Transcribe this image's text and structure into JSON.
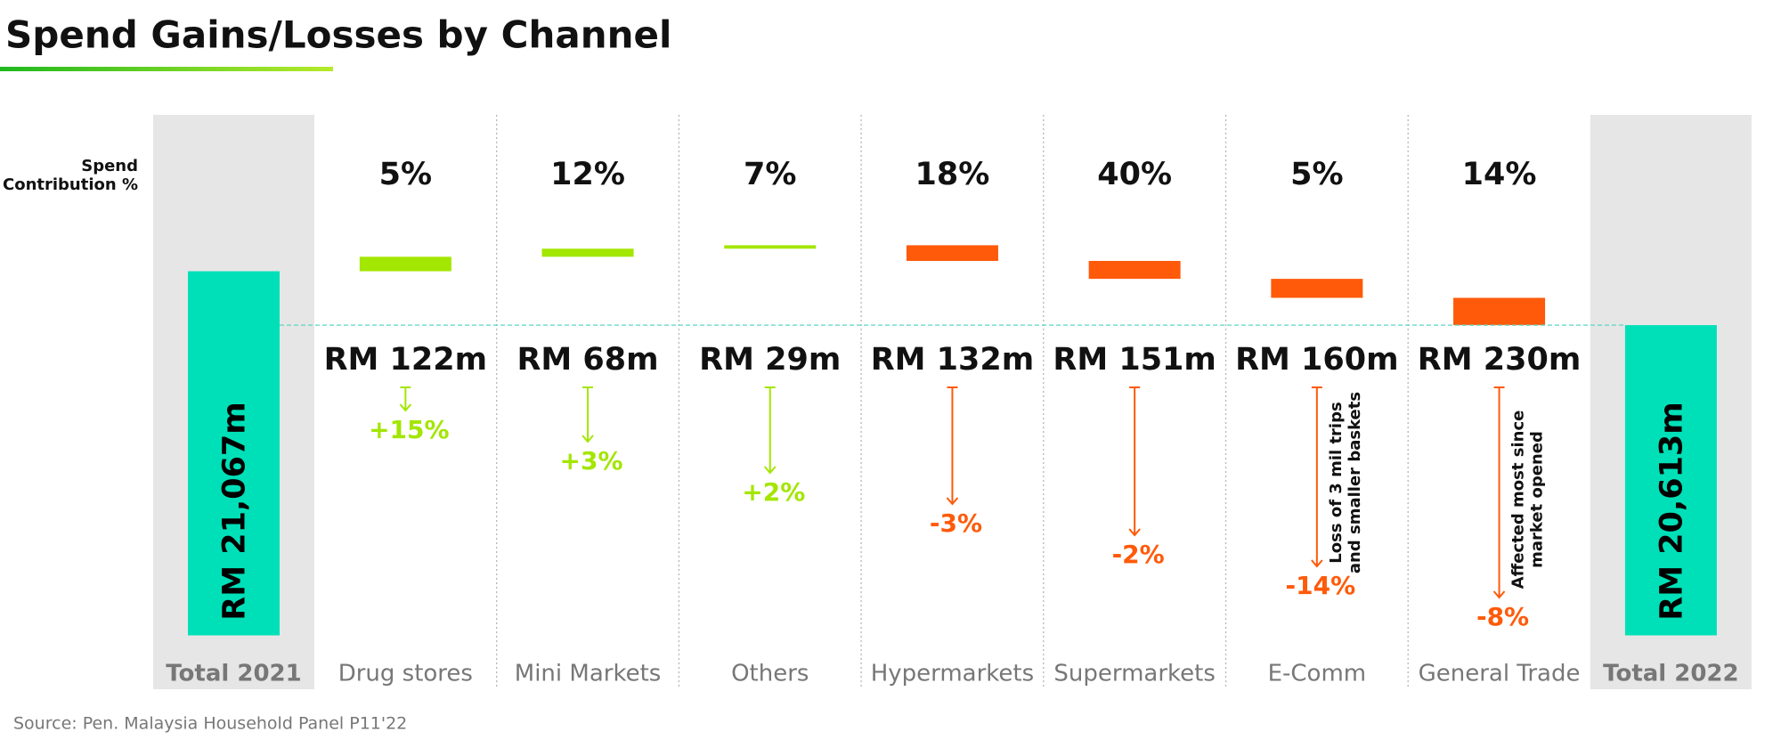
{
  "chart_data": {
    "type": "waterfall",
    "title": "Spend Gains/Losses by Channel",
    "source": "Source: Pen. Malaysia Household Panel P11'22",
    "contribution_label": [
      "Spend",
      "Contribution %"
    ],
    "categories": [
      "Total 2021",
      "Drug stores",
      "Mini Markets",
      "Others",
      "Hypermarkets",
      "Supermarkets",
      "E-Comm",
      "General Trade",
      "Total 2022"
    ],
    "measure": [
      "total",
      "relative",
      "relative",
      "relative",
      "relative",
      "relative",
      "relative",
      "relative",
      "total"
    ],
    "values": [
      21067,
      122,
      68,
      29,
      -132,
      -151,
      -160,
      -230,
      20613
    ],
    "value_labels": [
      "RM 21,067m",
      "RM 122m",
      "RM 68m",
      "RM 29m",
      "RM 132m",
      "RM 151m",
      "RM 160m",
      "RM 230m",
      "RM 20,613m"
    ],
    "contributions": [
      null,
      "5%",
      "12%",
      "7%",
      "18%",
      "40%",
      "5%",
      "14%",
      null
    ],
    "growth": [
      null,
      "+15%",
      "+3%",
      "+2%",
      "-3%",
      "-2%",
      "-14%",
      "-8%",
      null
    ],
    "annotations": [
      null,
      null,
      null,
      null,
      null,
      null,
      [
        "Loss of 3 mil trips",
        "and smaller baskets"
      ],
      [
        "Affected most since",
        "market opened"
      ],
      null
    ],
    "ylim": [
      18000,
      21400
    ],
    "colors": {
      "total": "#00e0b8",
      "increase": "#a3e600",
      "decrease": "#ff5a0a"
    }
  }
}
